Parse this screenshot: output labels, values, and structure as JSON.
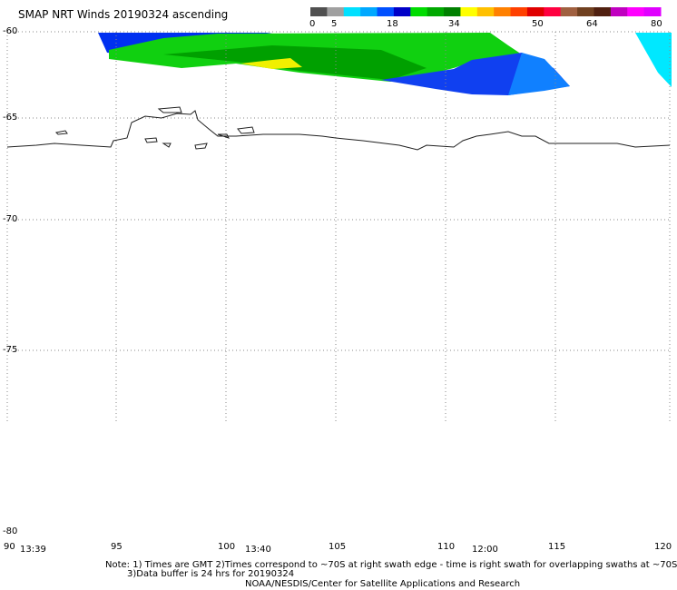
{
  "title": "SMAP NRT Winds 20190324 ascending",
  "colorbar": {
    "ticks": [
      "0",
      "5",
      "18",
      "34",
      "50",
      "64",
      "80"
    ],
    "segments": [
      "#505050",
      "#a0a0a0",
      "#00e0ff",
      "#00a8ff",
      "#0050ff",
      "#0000c8",
      "#00dc00",
      "#00a800",
      "#008000",
      "#ffff00",
      "#ffc000",
      "#ff8000",
      "#ff4000",
      "#e00000",
      "#ff0040",
      "#a06040",
      "#704020",
      "#502010",
      "#c000c0",
      "#ff00ff",
      "#e000ff"
    ]
  },
  "map": {
    "lat_labels": [
      "-60",
      "-65",
      "-70",
      "-75",
      "-80"
    ],
    "lon_labels": [
      "90",
      "95",
      "100",
      "105",
      "110",
      "115",
      "120"
    ],
    "time_labels": [
      "13:39",
      "13:40",
      "12:00"
    ]
  },
  "notes": {
    "line1": "Note: 1) Times are GMT 2)Times correspond to ~70S at right swath edge - time is right swath for overlapping swaths at ~70S",
    "line2": "3)Data buffer is 24 hrs for 20190324",
    "line3": "NOAA/NESDIS/Center for Satellite Applications and Research"
  }
}
